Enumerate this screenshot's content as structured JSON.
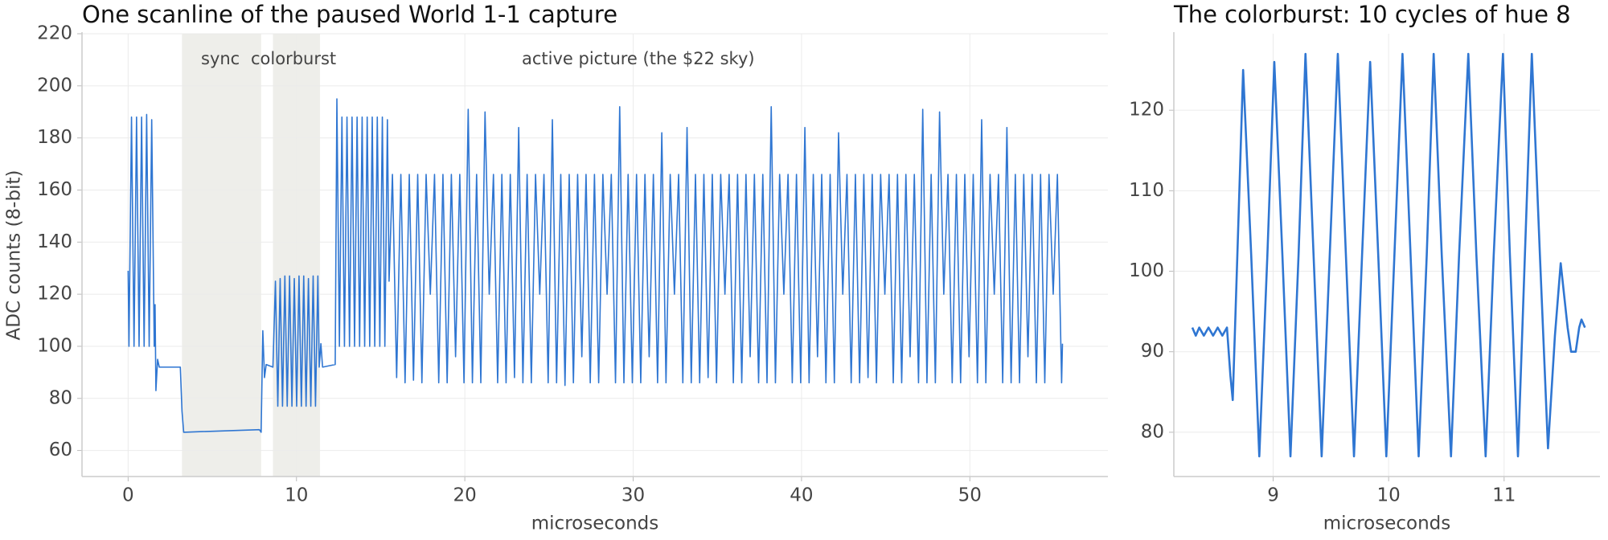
{
  "chart_data": [
    {
      "type": "line",
      "title": "One scanline of the paused World 1-1 capture",
      "xlabel": "microseconds",
      "ylabel": "ADC counts (8-bit)",
      "xlim": [
        -2.74,
        58.2
      ],
      "ylim": [
        50,
        220
      ],
      "xticks": [
        0,
        10,
        20,
        30,
        40,
        50
      ],
      "yticks": [
        60,
        80,
        100,
        120,
        140,
        160,
        180,
        200,
        220
      ],
      "grid": true,
      "color": "#2f76d2",
      "shaded_regions": [
        [
          3.2,
          7.9
        ],
        [
          8.6,
          11.4
        ]
      ],
      "region_color": "#eeeeea",
      "annotations": [
        "sync",
        "colorburst",
        "active picture (the $22 sky)"
      ],
      "x": [
        0,
        0.05,
        0.2,
        0.35,
        0.5,
        0.65,
        0.8,
        0.95,
        1.1,
        1.25,
        1.4,
        1.55,
        1.6,
        1.65,
        1.75,
        1.85,
        3.1,
        3.2,
        3.3,
        7.8,
        7.9,
        8.0,
        8.1,
        8.2,
        8.6,
        8.75,
        8.89,
        9.03,
        9.17,
        9.31,
        9.45,
        9.59,
        9.73,
        9.87,
        10.01,
        10.15,
        10.29,
        10.43,
        10.57,
        10.71,
        10.85,
        10.99,
        11.13,
        11.27,
        11.35,
        11.45,
        11.55,
        12.3,
        12.4,
        12.55,
        12.7,
        12.85,
        13.0,
        13.15,
        13.3,
        13.45,
        13.6,
        13.75,
        13.9,
        14.05,
        14.2,
        14.35,
        14.5,
        14.65,
        14.8,
        14.95,
        15.1,
        15.25,
        15.4,
        15.5,
        15.7,
        15.95,
        16.2,
        16.45,
        16.7,
        16.95,
        17.2,
        17.45,
        17.7,
        17.95,
        18.2,
        18.45,
        18.7,
        18.95,
        19.2,
        19.45,
        19.7,
        19.95,
        20.2,
        20.45,
        20.7,
        20.95,
        21.2,
        21.45,
        21.7,
        21.95,
        22.2,
        22.45,
        22.7,
        22.95,
        23.2,
        23.45,
        23.7,
        23.95,
        24.2,
        24.45,
        24.7,
        24.95,
        25.2,
        25.45,
        25.7,
        25.95,
        26.2,
        26.45,
        26.7,
        26.95,
        27.2,
        27.45,
        27.7,
        27.95,
        28.2,
        28.45,
        28.7,
        28.95,
        29.2,
        29.45,
        29.7,
        29.95,
        30.2,
        30.45,
        30.7,
        30.95,
        31.2,
        31.45,
        31.7,
        31.95,
        32.2,
        32.45,
        32.7,
        32.95,
        33.2,
        33.45,
        33.7,
        33.95,
        34.2,
        34.45,
        34.7,
        34.95,
        35.2,
        35.45,
        35.7,
        35.95,
        36.2,
        36.45,
        36.7,
        36.95,
        37.2,
        37.45,
        37.7,
        37.95,
        38.2,
        38.45,
        38.7,
        38.95,
        39.2,
        39.45,
        39.7,
        39.95,
        40.2,
        40.45,
        40.7,
        40.95,
        41.2,
        41.45,
        41.7,
        41.95,
        42.2,
        42.45,
        42.7,
        42.95,
        43.2,
        43.45,
        43.7,
        43.95,
        44.2,
        44.45,
        44.7,
        44.95,
        45.2,
        45.45,
        45.7,
        45.95,
        46.2,
        46.45,
        46.7,
        46.95,
        47.2,
        47.45,
        47.7,
        47.95,
        48.2,
        48.45,
        48.7,
        48.95,
        49.2,
        49.45,
        49.7,
        49.95,
        50.2,
        50.45,
        50.7,
        50.95,
        51.2,
        51.45,
        51.7,
        51.95,
        52.2,
        52.45,
        52.7,
        52.95,
        53.2,
        53.45,
        53.7,
        53.95,
        54.2,
        54.45,
        54.7,
        54.95,
        55.2,
        55.45,
        55.5
      ],
      "values": [
        129,
        100,
        188,
        100,
        188,
        100,
        188,
        100,
        189,
        100,
        187,
        100,
        116,
        83,
        95,
        92,
        92,
        75,
        67,
        68,
        67,
        106,
        88,
        93,
        92,
        125,
        77,
        126,
        77,
        127,
        77,
        127,
        77,
        126,
        77,
        127,
        77,
        127,
        77,
        126,
        77,
        127,
        77,
        127,
        92,
        101,
        92,
        93,
        195,
        100,
        188,
        100,
        188,
        100,
        188,
        100,
        188,
        100,
        188,
        100,
        188,
        100,
        188,
        100,
        188,
        100,
        188,
        100,
        187,
        125,
        166,
        88,
        166,
        86,
        166,
        87,
        166,
        86,
        166,
        120,
        166,
        86,
        166,
        86,
        166,
        96,
        166,
        86,
        191,
        86,
        166,
        86,
        190,
        120,
        166,
        86,
        166,
        86,
        166,
        88,
        184,
        86,
        166,
        86,
        166,
        120,
        166,
        86,
        187,
        86,
        166,
        85,
        166,
        86,
        166,
        96,
        166,
        86,
        166,
        86,
        166,
        120,
        166,
        86,
        192,
        86,
        166,
        86,
        166,
        86,
        166,
        96,
        166,
        86,
        182,
        86,
        166,
        120,
        166,
        86,
        184,
        86,
        166,
        86,
        166,
        88,
        166,
        86,
        166,
        120,
        166,
        86,
        166,
        86,
        166,
        96,
        166,
        86,
        166,
        86,
        192,
        86,
        166,
        120,
        166,
        86,
        166,
        86,
        184,
        86,
        166,
        96,
        166,
        86,
        166,
        86,
        182,
        120,
        166,
        86,
        166,
        86,
        166,
        88,
        166,
        86,
        166,
        120,
        166,
        86,
        166,
        86,
        166,
        96,
        166,
        86,
        191,
        86,
        166,
        86,
        190,
        120,
        166,
        86,
        166,
        86,
        166,
        96,
        166,
        86,
        187,
        86,
        166,
        120,
        166,
        86,
        184,
        86,
        166,
        86,
        166,
        96,
        166,
        86,
        166,
        86,
        166,
        120,
        166,
        86,
        101
      ]
    },
    {
      "type": "line",
      "title": "The colorburst: 10 cycles of hue 8",
      "xlabel": "microseconds",
      "xlim": [
        8.14,
        11.83
      ],
      "ylim": [
        74.5,
        129.5
      ],
      "xticks": [
        9,
        10,
        11
      ],
      "yticks": [
        80,
        90,
        100,
        110,
        120
      ],
      "grid": true,
      "color": "#2f76d2",
      "x": [
        8.3,
        8.33,
        8.36,
        8.4,
        8.44,
        8.48,
        8.52,
        8.56,
        8.6,
        8.63,
        8.65,
        8.69,
        8.74,
        8.81,
        8.88,
        8.95,
        9.01,
        9.08,
        9.15,
        9.22,
        9.28,
        9.35,
        9.42,
        9.49,
        9.56,
        9.63,
        9.7,
        9.77,
        9.84,
        9.91,
        9.98,
        10.05,
        10.12,
        10.19,
        10.26,
        10.33,
        10.39,
        10.46,
        10.54,
        10.61,
        10.69,
        10.76,
        10.84,
        10.91,
        10.99,
        11.05,
        11.12,
        11.18,
        11.24,
        11.31,
        11.38,
        11.44,
        11.49,
        11.52,
        11.55,
        11.58,
        11.62,
        11.65,
        11.67,
        11.7
      ],
      "values": [
        93,
        92,
        93,
        92,
        93,
        92,
        93,
        92,
        93,
        87,
        84,
        102,
        125,
        102,
        77,
        102,
        126,
        102,
        77,
        102,
        127,
        102,
        77,
        102,
        127,
        102,
        77,
        102,
        126,
        102,
        77,
        102,
        127,
        102,
        77,
        102,
        127,
        102,
        77,
        102,
        127,
        102,
        77,
        102,
        127,
        102,
        77,
        102,
        127,
        102,
        78,
        92,
        101,
        97,
        93,
        90,
        90,
        93,
        94,
        93
      ]
    }
  ]
}
